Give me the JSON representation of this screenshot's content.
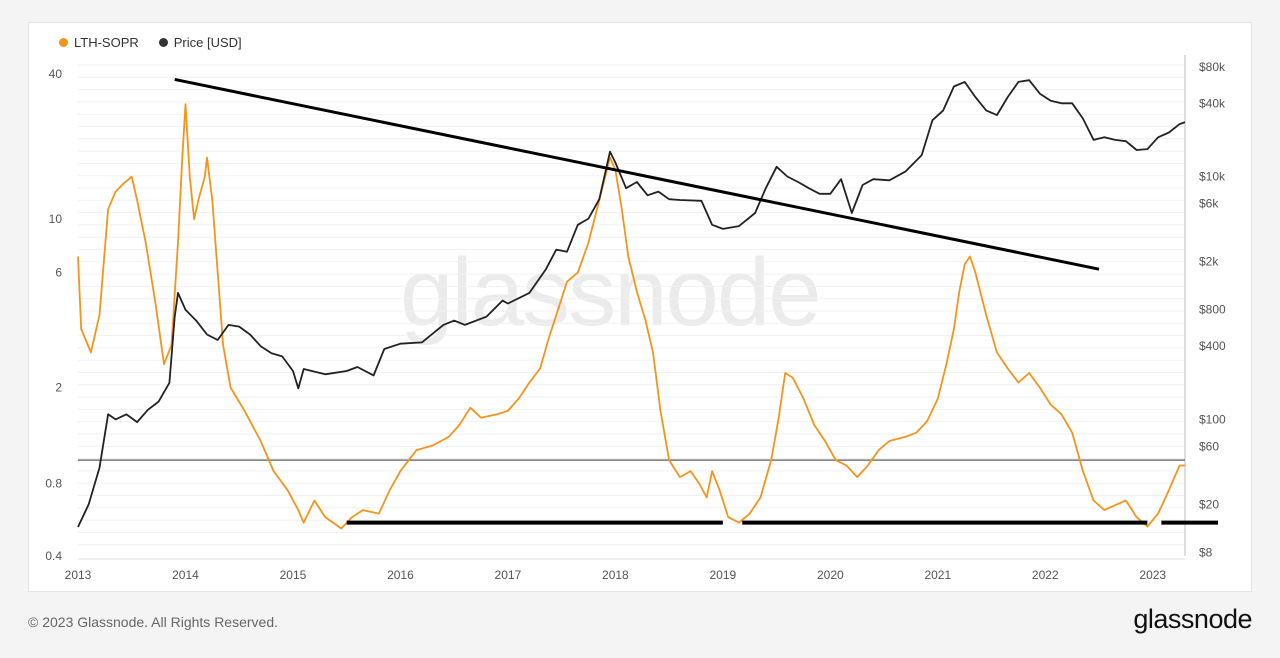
{
  "legend": [
    {
      "label": "LTH-SOPR",
      "color": "#f7931a"
    },
    {
      "label": "Price [USD]",
      "color": "#333333"
    }
  ],
  "watermark": "glassnode",
  "footer": {
    "copyright": "© 2023 Glassnode. All Rights Reserved.",
    "brand": "glassnode"
  },
  "chart_data": {
    "type": "line",
    "x_ticks": [
      "2013",
      "2014",
      "2015",
      "2016",
      "2017",
      "2018",
      "2019",
      "2020",
      "2021",
      "2022",
      "2023"
    ],
    "x_range": [
      2013.0,
      2023.3
    ],
    "left_axis": {
      "scale": "log",
      "ticks": [
        "40",
        "10",
        "6",
        "2",
        "0.8",
        "0.4"
      ],
      "tick_values": [
        40,
        10,
        6,
        2,
        0.8,
        0.4
      ],
      "range": [
        0.4,
        48
      ]
    },
    "right_axis": {
      "scale": "log",
      "ticks": [
        "$80k",
        "$40k",
        "$10k",
        "$6k",
        "$2k",
        "$800",
        "$400",
        "$100",
        "$60",
        "$20",
        "$8"
      ],
      "tick_values": [
        80000,
        40000,
        10000,
        6000,
        2000,
        800,
        400,
        100,
        60,
        20,
        8
      ],
      "range": [
        7.5,
        100000
      ]
    },
    "series": [
      {
        "name": "LTH-SOPR",
        "axis": "left",
        "color": "#f7931a",
        "points": [
          [
            2013.0,
            7
          ],
          [
            2013.03,
            3.5
          ],
          [
            2013.12,
            2.8
          ],
          [
            2013.2,
            4
          ],
          [
            2013.28,
            11
          ],
          [
            2013.35,
            13
          ],
          [
            2013.42,
            14
          ],
          [
            2013.5,
            15
          ],
          [
            2013.55,
            12
          ],
          [
            2013.63,
            8
          ],
          [
            2013.72,
            4.5
          ],
          [
            2013.8,
            2.5
          ],
          [
            2013.87,
            3
          ],
          [
            2013.93,
            8
          ],
          [
            2013.97,
            18
          ],
          [
            2014.0,
            30
          ],
          [
            2014.04,
            15
          ],
          [
            2014.08,
            10
          ],
          [
            2014.12,
            12
          ],
          [
            2014.18,
            15
          ],
          [
            2014.2,
            18
          ],
          [
            2014.25,
            12
          ],
          [
            2014.3,
            6
          ],
          [
            2014.35,
            3
          ],
          [
            2014.42,
            2
          ],
          [
            2014.55,
            1.6
          ],
          [
            2014.7,
            1.2
          ],
          [
            2014.82,
            0.9
          ],
          [
            2014.95,
            0.75
          ],
          [
            2015.05,
            0.62
          ],
          [
            2015.1,
            0.55
          ],
          [
            2015.2,
            0.68
          ],
          [
            2015.3,
            0.58
          ],
          [
            2015.45,
            0.52
          ],
          [
            2015.55,
            0.58
          ],
          [
            2015.65,
            0.62
          ],
          [
            2015.8,
            0.6
          ],
          [
            2015.9,
            0.75
          ],
          [
            2016.0,
            0.9
          ],
          [
            2016.15,
            1.1
          ],
          [
            2016.3,
            1.15
          ],
          [
            2016.45,
            1.25
          ],
          [
            2016.55,
            1.4
          ],
          [
            2016.65,
            1.65
          ],
          [
            2016.75,
            1.5
          ],
          [
            2016.9,
            1.55
          ],
          [
            2017.0,
            1.6
          ],
          [
            2017.1,
            1.8
          ],
          [
            2017.2,
            2.1
          ],
          [
            2017.3,
            2.4
          ],
          [
            2017.38,
            3.2
          ],
          [
            2017.45,
            4
          ],
          [
            2017.55,
            5.5
          ],
          [
            2017.65,
            6
          ],
          [
            2017.75,
            8
          ],
          [
            2017.85,
            12
          ],
          [
            2017.95,
            18
          ],
          [
            2018.0,
            16
          ],
          [
            2018.06,
            11
          ],
          [
            2018.12,
            7
          ],
          [
            2018.2,
            5
          ],
          [
            2018.28,
            3.8
          ],
          [
            2018.35,
            2.8
          ],
          [
            2018.42,
            1.6
          ],
          [
            2018.5,
            1.0
          ],
          [
            2018.6,
            0.85
          ],
          [
            2018.7,
            0.9
          ],
          [
            2018.78,
            0.8
          ],
          [
            2018.85,
            0.7
          ],
          [
            2018.9,
            0.9
          ],
          [
            2018.97,
            0.75
          ],
          [
            2019.05,
            0.58
          ],
          [
            2019.15,
            0.55
          ],
          [
            2019.25,
            0.6
          ],
          [
            2019.35,
            0.7
          ],
          [
            2019.45,
            1.0
          ],
          [
            2019.52,
            1.5
          ],
          [
            2019.58,
            2.3
          ],
          [
            2019.65,
            2.2
          ],
          [
            2019.75,
            1.8
          ],
          [
            2019.85,
            1.4
          ],
          [
            2019.95,
            1.2
          ],
          [
            2020.05,
            1.0
          ],
          [
            2020.15,
            0.95
          ],
          [
            2020.25,
            0.85
          ],
          [
            2020.35,
            0.95
          ],
          [
            2020.45,
            1.1
          ],
          [
            2020.55,
            1.2
          ],
          [
            2020.7,
            1.25
          ],
          [
            2020.8,
            1.3
          ],
          [
            2020.9,
            1.45
          ],
          [
            2021.0,
            1.8
          ],
          [
            2021.08,
            2.5
          ],
          [
            2021.15,
            3.5
          ],
          [
            2021.2,
            5
          ],
          [
            2021.25,
            6.5
          ],
          [
            2021.3,
            7
          ],
          [
            2021.35,
            6
          ],
          [
            2021.45,
            4
          ],
          [
            2021.55,
            2.8
          ],
          [
            2021.65,
            2.4
          ],
          [
            2021.75,
            2.1
          ],
          [
            2021.85,
            2.3
          ],
          [
            2021.95,
            2.0
          ],
          [
            2022.05,
            1.7
          ],
          [
            2022.15,
            1.55
          ],
          [
            2022.25,
            1.3
          ],
          [
            2022.35,
            0.9
          ],
          [
            2022.45,
            0.68
          ],
          [
            2022.55,
            0.62
          ],
          [
            2022.65,
            0.65
          ],
          [
            2022.75,
            0.68
          ],
          [
            2022.85,
            0.58
          ],
          [
            2022.95,
            0.53
          ],
          [
            2023.05,
            0.6
          ],
          [
            2023.15,
            0.75
          ],
          [
            2023.25,
            0.95
          ],
          [
            2023.3,
            0.95
          ]
        ]
      },
      {
        "name": "Price [USD]",
        "axis": "right",
        "color": "#222222",
        "points": [
          [
            2013.0,
            13
          ],
          [
            2013.1,
            20
          ],
          [
            2013.2,
            40
          ],
          [
            2013.28,
            110
          ],
          [
            2013.35,
            100
          ],
          [
            2013.45,
            110
          ],
          [
            2013.55,
            95
          ],
          [
            2013.65,
            120
          ],
          [
            2013.75,
            140
          ],
          [
            2013.85,
            200
          ],
          [
            2013.9,
            700
          ],
          [
            2013.93,
            1100
          ],
          [
            2014.0,
            800
          ],
          [
            2014.1,
            650
          ],
          [
            2014.2,
            500
          ],
          [
            2014.3,
            450
          ],
          [
            2014.4,
            600
          ],
          [
            2014.5,
            580
          ],
          [
            2014.6,
            500
          ],
          [
            2014.7,
            400
          ],
          [
            2014.8,
            350
          ],
          [
            2014.9,
            330
          ],
          [
            2015.0,
            250
          ],
          [
            2015.05,
            180
          ],
          [
            2015.1,
            260
          ],
          [
            2015.3,
            235
          ],
          [
            2015.5,
            250
          ],
          [
            2015.6,
            270
          ],
          [
            2015.75,
            230
          ],
          [
            2015.85,
            380
          ],
          [
            2016.0,
            420
          ],
          [
            2016.2,
            430
          ],
          [
            2016.4,
            600
          ],
          [
            2016.5,
            650
          ],
          [
            2016.6,
            600
          ],
          [
            2016.8,
            700
          ],
          [
            2016.95,
            950
          ],
          [
            2017.0,
            900
          ],
          [
            2017.2,
            1100
          ],
          [
            2017.35,
            1700
          ],
          [
            2017.45,
            2500
          ],
          [
            2017.55,
            2400
          ],
          [
            2017.65,
            4000
          ],
          [
            2017.75,
            4500
          ],
          [
            2017.85,
            6500
          ],
          [
            2017.95,
            16000
          ],
          [
            2018.0,
            13000
          ],
          [
            2018.1,
            8000
          ],
          [
            2018.2,
            9000
          ],
          [
            2018.3,
            7000
          ],
          [
            2018.4,
            7500
          ],
          [
            2018.5,
            6500
          ],
          [
            2018.6,
            6400
          ],
          [
            2018.8,
            6300
          ],
          [
            2018.9,
            4000
          ],
          [
            2019.0,
            3700
          ],
          [
            2019.15,
            3900
          ],
          [
            2019.3,
            5000
          ],
          [
            2019.4,
            8000
          ],
          [
            2019.5,
            12000
          ],
          [
            2019.6,
            10000
          ],
          [
            2019.7,
            9000
          ],
          [
            2019.8,
            8000
          ],
          [
            2019.9,
            7200
          ],
          [
            2020.0,
            7200
          ],
          [
            2020.1,
            9500
          ],
          [
            2020.2,
            5000
          ],
          [
            2020.3,
            8500
          ],
          [
            2020.4,
            9500
          ],
          [
            2020.55,
            9300
          ],
          [
            2020.7,
            11000
          ],
          [
            2020.85,
            15000
          ],
          [
            2020.95,
            29000
          ],
          [
            2021.05,
            35000
          ],
          [
            2021.15,
            55000
          ],
          [
            2021.25,
            60000
          ],
          [
            2021.35,
            45000
          ],
          [
            2021.45,
            35000
          ],
          [
            2021.55,
            32000
          ],
          [
            2021.65,
            45000
          ],
          [
            2021.75,
            60000
          ],
          [
            2021.85,
            62000
          ],
          [
            2021.95,
            48000
          ],
          [
            2022.05,
            42000
          ],
          [
            2022.15,
            40000
          ],
          [
            2022.25,
            40000
          ],
          [
            2022.35,
            30000
          ],
          [
            2022.45,
            20000
          ],
          [
            2022.55,
            21000
          ],
          [
            2022.65,
            20000
          ],
          [
            2022.75,
            19500
          ],
          [
            2022.85,
            16500
          ],
          [
            2022.95,
            16800
          ],
          [
            2023.05,
            21000
          ],
          [
            2023.15,
            23000
          ],
          [
            2023.25,
            27000
          ],
          [
            2023.3,
            28000
          ]
        ]
      }
    ],
    "reference_lines": {
      "descending_trendline": [
        [
          2013.9,
          38
        ],
        [
          2022.5,
          6.2
        ]
      ],
      "lth_sopr_level": 1.0,
      "bottom_segments": [
        [
          2015.5,
          2019.0,
          0.55
        ],
        [
          2019.18,
          2022.95,
          0.55
        ],
        [
          2023.08,
          2023.65,
          0.55
        ]
      ]
    }
  }
}
